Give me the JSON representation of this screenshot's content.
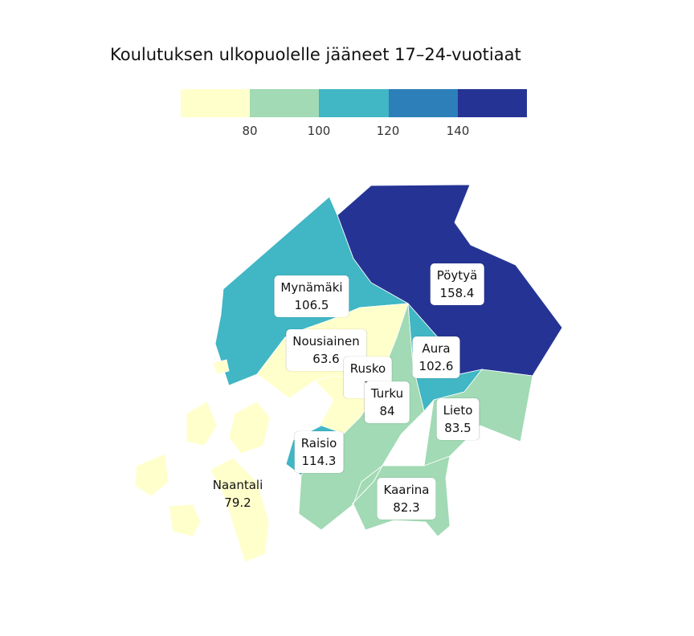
{
  "title": "Koulutuksen ulkopuolelle jääneet 17–24-vuotiaat",
  "legend": {
    "colors": [
      "#ffffcc",
      "#a1dab4",
      "#41b6c4",
      "#2c7fb8",
      "#253494"
    ],
    "ticks": [
      "80",
      "100",
      "120",
      "140"
    ]
  },
  "municipalities": [
    {
      "name": "Pöytyä",
      "value": "158.4",
      "color": "#253494"
    },
    {
      "name": "Mynämäki",
      "value": "106.5",
      "color": "#41b6c4"
    },
    {
      "name": "Nousiainen",
      "value": "63.6",
      "color": "#ffffcc"
    },
    {
      "name": "Rusko",
      "value": "7",
      "color": "#ffffcc"
    },
    {
      "name": "Aura",
      "value": "102.6",
      "color": "#41b6c4"
    },
    {
      "name": "Turku",
      "value": "84",
      "color": "#a1dab4"
    },
    {
      "name": "Lieto",
      "value": "83.5",
      "color": "#a1dab4"
    },
    {
      "name": "Raisio",
      "value": "114.3",
      "color": "#41b6c4"
    },
    {
      "name": "Kaarina",
      "value": "82.3",
      "color": "#a1dab4"
    },
    {
      "name": "Naantali",
      "value": "79.2",
      "color": "#ffffcc"
    }
  ]
}
